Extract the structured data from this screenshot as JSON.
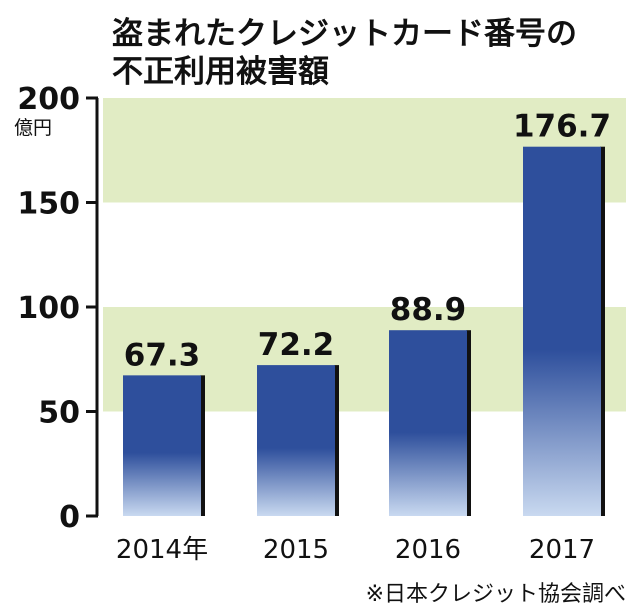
{
  "chart_data": {
    "type": "bar",
    "title_lines": [
      "盗まれたクレジットカード番号の",
      "不正利用被害額"
    ],
    "unit": "億円",
    "categories": [
      "2014年",
      "2015",
      "2016",
      "2017"
    ],
    "values": [
      67.3,
      72.2,
      88.9,
      176.7
    ],
    "value_labels": [
      "67.3",
      "72.2",
      "88.9",
      "176.7"
    ],
    "ylim": [
      0,
      200
    ],
    "yticks": [
      0,
      50,
      100,
      150,
      200
    ],
    "ytick_labels": [
      "0",
      "50",
      "100",
      "150",
      "200"
    ],
    "bands": [
      [
        50,
        100
      ],
      [
        150,
        200
      ]
    ],
    "source": "※日本クレジット協会調べ",
    "colors": {
      "bar_top": "#2e4f9c",
      "bar_bottom": "#c9d9f0",
      "bar_shadow": "#111111",
      "band": "#e1ecc4",
      "axis": "#111111"
    }
  }
}
